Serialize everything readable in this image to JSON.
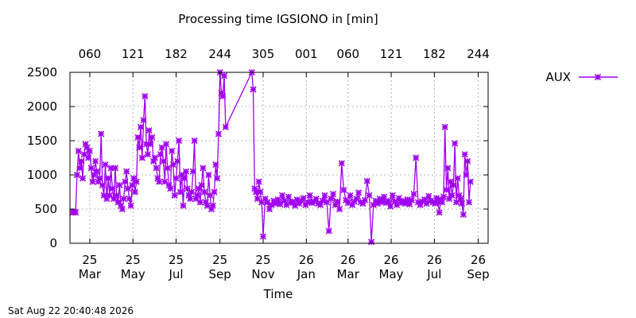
{
  "chart_data": {
    "type": "line",
    "title": "Processing time IGSIONO in [min]",
    "xlabel": "Time",
    "ylabel": "",
    "ylim": [
      0,
      2500
    ],
    "yticks": [
      0,
      500,
      1000,
      1500,
      2000,
      2500
    ],
    "grid": true,
    "legend_position": "top-right-outside",
    "x_start": "2025-02-01",
    "x_end": "2026-09-15",
    "x_bottom_ticks": [
      {
        "date": "2025-03-01",
        "year": "25",
        "month": "Mar"
      },
      {
        "date": "2025-05-01",
        "year": "25",
        "month": "May"
      },
      {
        "date": "2025-07-01",
        "year": "25",
        "month": "Jul"
      },
      {
        "date": "2025-09-01",
        "year": "25",
        "month": "Sep"
      },
      {
        "date": "2025-11-01",
        "year": "25",
        "month": "Nov"
      },
      {
        "date": "2026-01-01",
        "year": "26",
        "month": "Jan"
      },
      {
        "date": "2026-03-01",
        "year": "26",
        "month": "Mar"
      },
      {
        "date": "2026-05-01",
        "year": "26",
        "month": "May"
      },
      {
        "date": "2026-07-01",
        "year": "26",
        "month": "Jul"
      },
      {
        "date": "2026-09-01",
        "year": "26",
        "month": "Sep"
      }
    ],
    "x_top_ticks": [
      {
        "date": "2025-03-01",
        "label": "060"
      },
      {
        "date": "2025-05-01",
        "label": "121"
      },
      {
        "date": "2025-07-01",
        "label": "182"
      },
      {
        "date": "2025-09-01",
        "label": "244"
      },
      {
        "date": "2025-11-01",
        "label": "305"
      },
      {
        "date": "2026-01-01",
        "label": "001"
      },
      {
        "date": "2026-03-01",
        "label": "060"
      },
      {
        "date": "2026-05-01",
        "label": "121"
      },
      {
        "date": "2026-07-01",
        "label": "182"
      },
      {
        "date": "2026-09-01",
        "label": "244"
      }
    ],
    "series": [
      {
        "name": "AUX",
        "color": "#a000f0",
        "marker": "star",
        "x": [
          "2025-02-05",
          "2025-02-07",
          "2025-02-09",
          "2025-02-11",
          "2025-02-13",
          "2025-02-15",
          "2025-02-17",
          "2025-02-19",
          "2025-02-21",
          "2025-02-23",
          "2025-02-25",
          "2025-02-27",
          "2025-03-01",
          "2025-03-03",
          "2025-03-05",
          "2025-03-07",
          "2025-03-09",
          "2025-03-11",
          "2025-03-13",
          "2025-03-15",
          "2025-03-17",
          "2025-03-19",
          "2025-03-21",
          "2025-03-23",
          "2025-03-25",
          "2025-03-27",
          "2025-03-29",
          "2025-03-31",
          "2025-04-02",
          "2025-04-04",
          "2025-04-06",
          "2025-04-08",
          "2025-04-10",
          "2025-04-12",
          "2025-04-14",
          "2025-04-16",
          "2025-04-18",
          "2025-04-20",
          "2025-04-22",
          "2025-04-24",
          "2025-04-26",
          "2025-04-28",
          "2025-04-30",
          "2025-05-02",
          "2025-05-04",
          "2025-05-06",
          "2025-05-08",
          "2025-05-10",
          "2025-05-12",
          "2025-05-14",
          "2025-05-16",
          "2025-05-18",
          "2025-05-20",
          "2025-05-22",
          "2025-05-24",
          "2025-05-26",
          "2025-05-28",
          "2025-05-30",
          "2025-06-01",
          "2025-06-03",
          "2025-06-05",
          "2025-06-07",
          "2025-06-09",
          "2025-06-11",
          "2025-06-13",
          "2025-06-15",
          "2025-06-17",
          "2025-06-19",
          "2025-06-21",
          "2025-06-23",
          "2025-06-25",
          "2025-06-27",
          "2025-06-29",
          "2025-07-01",
          "2025-07-03",
          "2025-07-05",
          "2025-07-07",
          "2025-07-09",
          "2025-07-11",
          "2025-07-13",
          "2025-07-15",
          "2025-07-17",
          "2025-07-19",
          "2025-07-21",
          "2025-07-23",
          "2025-07-25",
          "2025-07-27",
          "2025-07-29",
          "2025-07-31",
          "2025-08-02",
          "2025-08-04",
          "2025-08-06",
          "2025-08-08",
          "2025-08-10",
          "2025-08-12",
          "2025-08-14",
          "2025-08-16",
          "2025-08-18",
          "2025-08-20",
          "2025-08-22",
          "2025-08-24",
          "2025-08-26",
          "2025-08-28",
          "2025-08-30",
          "2025-09-01",
          "2025-09-03",
          "2025-09-05",
          "2025-09-07",
          "2025-09-09",
          "2025-10-16",
          "2025-10-18",
          "2025-10-20",
          "2025-10-22",
          "2025-10-24",
          "2025-10-26",
          "2025-10-28",
          "2025-10-30",
          "2025-11-01",
          "2025-11-04",
          "2025-11-07",
          "2025-11-10",
          "2025-11-13",
          "2025-11-16",
          "2025-11-19",
          "2025-11-22",
          "2025-11-25",
          "2025-11-28",
          "2025-12-01",
          "2025-12-04",
          "2025-12-07",
          "2025-12-10",
          "2025-12-13",
          "2025-12-16",
          "2025-12-19",
          "2025-12-22",
          "2025-12-25",
          "2025-12-28",
          "2025-12-31",
          "2026-01-03",
          "2026-01-06",
          "2026-01-09",
          "2026-01-12",
          "2026-01-15",
          "2026-01-18",
          "2026-01-21",
          "2026-01-24",
          "2026-01-27",
          "2026-01-30",
          "2026-02-02",
          "2026-02-05",
          "2026-02-08",
          "2026-02-11",
          "2026-02-14",
          "2026-02-17",
          "2026-02-20",
          "2026-02-23",
          "2026-02-26",
          "2026-03-01",
          "2026-03-04",
          "2026-03-07",
          "2026-03-10",
          "2026-03-13",
          "2026-03-16",
          "2026-03-19",
          "2026-03-22",
          "2026-03-25",
          "2026-03-28",
          "2026-03-31",
          "2026-04-03",
          "2026-04-06",
          "2026-04-09",
          "2026-04-12",
          "2026-04-15",
          "2026-04-18",
          "2026-04-21",
          "2026-04-24",
          "2026-04-27",
          "2026-04-30",
          "2026-05-03",
          "2026-05-06",
          "2026-05-09",
          "2026-05-12",
          "2026-05-15",
          "2026-05-18",
          "2026-05-21",
          "2026-05-24",
          "2026-05-27",
          "2026-05-30",
          "2026-06-02",
          "2026-06-05",
          "2026-06-08",
          "2026-06-11",
          "2026-06-14",
          "2026-06-17",
          "2026-06-20",
          "2026-06-23",
          "2026-06-26",
          "2026-06-29",
          "2026-07-02",
          "2026-07-04",
          "2026-07-06",
          "2026-07-08",
          "2026-07-10",
          "2026-07-12",
          "2026-07-14",
          "2026-07-16",
          "2026-07-18",
          "2026-07-20",
          "2026-07-22",
          "2026-07-24",
          "2026-07-26",
          "2026-07-28",
          "2026-07-30",
          "2026-08-01",
          "2026-08-03",
          "2026-08-05",
          "2026-08-07",
          "2026-08-09",
          "2026-08-11",
          "2026-08-13",
          "2026-08-15",
          "2026-08-17",
          "2026-08-19",
          "2026-08-21"
        ],
        "y": [
          450,
          460,
          450,
          1000,
          1350,
          1100,
          1200,
          950,
          1300,
          1450,
          1400,
          1250,
          1350,
          1100,
          900,
          1000,
          1200,
          1050,
          900,
          950,
          1600,
          850,
          700,
          1150,
          650,
          950,
          700,
          1100,
          800,
          650,
          1100,
          700,
          600,
          850,
          550,
          500,
          650,
          900,
          1050,
          800,
          650,
          550,
          850,
          950,
          750,
          900,
          1550,
          1400,
          1700,
          1250,
          1800,
          2150,
          1450,
          1300,
          1650,
          1450,
          1550,
          1200,
          1250,
          1100,
          950,
          900,
          1300,
          1400,
          1200,
          900,
          1450,
          1100,
          850,
          800,
          1350,
          1150,
          700,
          950,
          1200,
          1500,
          750,
          1000,
          550,
          950,
          1050,
          800,
          700,
          650,
          750,
          1050,
          1500,
          650,
          700,
          800,
          600,
          850,
          1100,
          750,
          600,
          550,
          1000,
          700,
          500,
          550,
          750,
          1150,
          950,
          1600,
          2500,
          2200,
          2150,
          2450,
          1700,
          2500,
          2250,
          800,
          750,
          650,
          900,
          750,
          600,
          100,
          650,
          600,
          500,
          560,
          620,
          580,
          640,
          570,
          700,
          620,
          560,
          680,
          590,
          610,
          550,
          640,
          580,
          620,
          660,
          560,
          600,
          700,
          590,
          610,
          650,
          580,
          560,
          620,
          700,
          600,
          180,
          650,
          720,
          560,
          610,
          500,
          1170,
          780,
          630,
          590,
          700,
          560,
          610,
          650,
          740,
          600,
          580,
          630,
          910,
          700,
          20,
          560,
          620,
          580,
          650,
          600,
          680,
          590,
          620,
          540,
          700,
          610,
          560,
          660,
          590,
          620,
          580,
          640,
          570,
          630,
          720,
          1250,
          600,
          560,
          610,
          640,
          580,
          690,
          620,
          600,
          580,
          660,
          600,
          450,
          640,
          600,
          680,
          1700,
          780,
          1100,
          650,
          900,
          700,
          850,
          1460,
          600,
          950,
          700,
          650,
          580,
          420,
          1300,
          1000,
          1200,
          600,
          900
        ]
      }
    ]
  },
  "footer_timestamp": "Sat Aug 22 20:40:48 2026"
}
